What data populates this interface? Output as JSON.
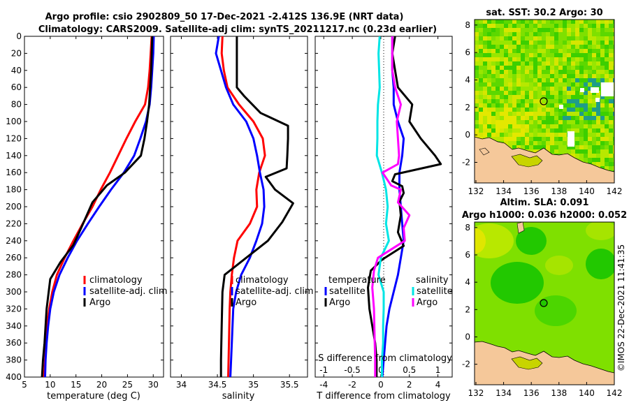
{
  "title": {
    "line1": "Argo profile: csio 2902809_50 17-Dec-2021 -2.412S 136.9E (NRT data)",
    "line2": "Climatology: CARS2009. Satellite-adj clim: synTS_20211217.nc (0.23d earlier)"
  },
  "credit": "©IMOS 22-Dec-2021 11:41:35",
  "colors": {
    "climatology": "#ff0000",
    "satellite": "#0000ff",
    "argo": "#000000",
    "sal_satellite": "#00e5e5",
    "sal_argo": "#ff00ff",
    "land": "#f5c89a"
  },
  "chart_data": [
    {
      "type": "line",
      "name": "temperature-panel",
      "xlabel": "temperature (deg C)",
      "ylabel": "",
      "xlim": [
        5,
        32
      ],
      "ylim": [
        400,
        0
      ],
      "xticks": [
        5,
        10,
        15,
        20,
        25,
        30
      ],
      "yticks": [
        0,
        20,
        40,
        60,
        80,
        100,
        120,
        140,
        160,
        180,
        200,
        220,
        240,
        260,
        280,
        300,
        320,
        340,
        360,
        380,
        400
      ],
      "legend": [
        "climatology",
        "satellite-adj. clim",
        "Argo"
      ],
      "legend_position": "lower-right",
      "series": [
        {
          "name": "climatology",
          "color": "#ff0000",
          "points": [
            [
              29.7,
              0
            ],
            [
              29.5,
              20
            ],
            [
              29.3,
              40
            ],
            [
              29.0,
              60
            ],
            [
              28.4,
              80
            ],
            [
              26.5,
              100
            ],
            [
              24.8,
              120
            ],
            [
              23.2,
              140
            ],
            [
              21.6,
              160
            ],
            [
              19.8,
              180
            ],
            [
              18.2,
              200
            ],
            [
              16.3,
              220
            ],
            [
              14.5,
              240
            ],
            [
              12.8,
              260
            ],
            [
              11.3,
              280
            ],
            [
              10.4,
              300
            ],
            [
              9.8,
              320
            ],
            [
              9.4,
              340
            ],
            [
              9.2,
              360
            ],
            [
              9.0,
              380
            ],
            [
              8.8,
              400
            ]
          ]
        },
        {
          "name": "satellite-adj. clim",
          "color": "#0000ff",
          "points": [
            [
              30.1,
              0
            ],
            [
              30.0,
              20
            ],
            [
              29.8,
              40
            ],
            [
              29.6,
              60
            ],
            [
              29.3,
              80
            ],
            [
              28.6,
              100
            ],
            [
              27.5,
              120
            ],
            [
              26.3,
              140
            ],
            [
              24.3,
              160
            ],
            [
              21.8,
              180
            ],
            [
              19.5,
              200
            ],
            [
              17.3,
              220
            ],
            [
              15.2,
              240
            ],
            [
              13.4,
              260
            ],
            [
              11.8,
              280
            ],
            [
              10.7,
              300
            ],
            [
              10.0,
              320
            ],
            [
              9.6,
              340
            ],
            [
              9.3,
              360
            ],
            [
              9.1,
              380
            ],
            [
              9.0,
              400
            ]
          ]
        },
        {
          "name": "Argo",
          "color": "#000000",
          "points": [
            [
              29.8,
              0
            ],
            [
              29.6,
              40
            ],
            [
              29.4,
              60
            ],
            [
              29.2,
              80
            ],
            [
              28.8,
              100
            ],
            [
              28.3,
              120
            ],
            [
              27.6,
              140
            ],
            [
              24.5,
              160
            ],
            [
              21.0,
              175
            ],
            [
              18.2,
              195
            ],
            [
              16.0,
              225
            ],
            [
              14.5,
              245
            ],
            [
              12.0,
              265
            ],
            [
              10.0,
              285
            ],
            [
              9.3,
              320
            ],
            [
              8.9,
              360
            ],
            [
              8.6,
              380
            ],
            [
              8.4,
              400
            ]
          ]
        }
      ]
    },
    {
      "type": "line",
      "name": "salinity-panel",
      "xlabel": "salinity",
      "xlim": [
        33.85,
        35.75
      ],
      "ylim": [
        400,
        0
      ],
      "xticks": [
        34,
        34.5,
        35,
        35.5
      ],
      "legend": [
        "climatology",
        "satellite-adj. clim",
        "Argo"
      ],
      "legend_position": "lower-right",
      "series": [
        {
          "name": "climatology",
          "color": "#ff0000",
          "points": [
            [
              34.57,
              0
            ],
            [
              34.56,
              20
            ],
            [
              34.59,
              40
            ],
            [
              34.64,
              60
            ],
            [
              34.8,
              80
            ],
            [
              35.0,
              100
            ],
            [
              35.13,
              120
            ],
            [
              35.16,
              140
            ],
            [
              35.08,
              160
            ],
            [
              35.04,
              180
            ],
            [
              35.05,
              200
            ],
            [
              34.95,
              220
            ],
            [
              34.78,
              240
            ],
            [
              34.73,
              260
            ],
            [
              34.7,
              280
            ],
            [
              34.68,
              300
            ],
            [
              34.67,
              320
            ],
            [
              34.66,
              360
            ],
            [
              34.65,
              400
            ]
          ]
        },
        {
          "name": "satellite-adj. clim",
          "color": "#0000ff",
          "points": [
            [
              34.52,
              0
            ],
            [
              34.48,
              20
            ],
            [
              34.55,
              40
            ],
            [
              34.62,
              60
            ],
            [
              34.72,
              80
            ],
            [
              34.9,
              100
            ],
            [
              35.0,
              120
            ],
            [
              35.05,
              140
            ],
            [
              35.09,
              160
            ],
            [
              35.14,
              180
            ],
            [
              35.15,
              200
            ],
            [
              35.12,
              220
            ],
            [
              35.04,
              240
            ],
            [
              34.95,
              260
            ],
            [
              34.83,
              280
            ],
            [
              34.76,
              300
            ],
            [
              34.72,
              320
            ],
            [
              34.7,
              360
            ],
            [
              34.68,
              400
            ]
          ]
        },
        {
          "name": "Argo",
          "color": "#000000",
          "points": [
            [
              34.77,
              0
            ],
            [
              34.77,
              60
            ],
            [
              34.87,
              70
            ],
            [
              35.1,
              90
            ],
            [
              35.48,
              105
            ],
            [
              35.48,
              120
            ],
            [
              35.47,
              140
            ],
            [
              35.46,
              155
            ],
            [
              35.17,
              165
            ],
            [
              35.3,
              180
            ],
            [
              35.55,
              196
            ],
            [
              35.4,
              218
            ],
            [
              35.2,
              240
            ],
            [
              34.9,
              260
            ],
            [
              34.6,
              280
            ],
            [
              34.57,
              300
            ],
            [
              34.56,
              340
            ],
            [
              34.55,
              380
            ],
            [
              34.55,
              400
            ]
          ]
        }
      ]
    },
    {
      "type": "line",
      "name": "difference-panel",
      "xlabel": "T difference from climatology",
      "xlabel_top": "S difference from climatology",
      "xlim": [
        -4.6,
        5.0
      ],
      "ylim": [
        400,
        0
      ],
      "xticks": [
        -4,
        -2,
        0,
        2,
        4
      ],
      "xticks_top": [
        -1,
        -0.5,
        0,
        0.5,
        1
      ],
      "xticklabels_top": [
        "-1",
        "-0.5",
        "0",
        "0.5",
        "1"
      ],
      "legend_temperature": {
        "heading": "temperature",
        "entries": [
          "satellite",
          "Argo"
        ]
      },
      "legend_salinity": {
        "heading": "salinity",
        "entries": [
          "satellite",
          "Argo"
        ]
      },
      "series": [
        {
          "name": "temperature satellite",
          "color": "#0000ff",
          "points": [
            [
              0.8,
              0
            ],
            [
              0.8,
              20
            ],
            [
              0.8,
              40
            ],
            [
              0.9,
              60
            ],
            [
              0.9,
              80
            ],
            [
              1.2,
              100
            ],
            [
              1.6,
              120
            ],
            [
              1.5,
              140
            ],
            [
              1.3,
              160
            ],
            [
              1.3,
              180
            ],
            [
              1.4,
              200
            ],
            [
              1.5,
              220
            ],
            [
              1.6,
              240
            ],
            [
              1.4,
              260
            ],
            [
              1.2,
              280
            ],
            [
              0.9,
              300
            ],
            [
              0.6,
              320
            ],
            [
              0.4,
              340
            ],
            [
              0.3,
              360
            ],
            [
              0.2,
              380
            ],
            [
              0.1,
              400
            ]
          ]
        },
        {
          "name": "temperature Argo",
          "color": "#000000",
          "points": [
            [
              1.0,
              0
            ],
            [
              0.8,
              20
            ],
            [
              1.0,
              40
            ],
            [
              1.2,
              60
            ],
            [
              2.2,
              80
            ],
            [
              2.0,
              100
            ],
            [
              2.8,
              120
            ],
            [
              3.8,
              140
            ],
            [
              4.2,
              150
            ],
            [
              1.0,
              162
            ],
            [
              0.8,
              170
            ],
            [
              1.5,
              176
            ],
            [
              1.6,
              184
            ],
            [
              1.3,
              194
            ],
            [
              1.4,
              210
            ],
            [
              1.2,
              230
            ],
            [
              1.6,
              246
            ],
            [
              0.1,
              262
            ],
            [
              -0.7,
              275
            ],
            [
              -0.9,
              295
            ],
            [
              -0.8,
              320
            ],
            [
              -0.6,
              340
            ],
            [
              -0.4,
              360
            ],
            [
              -0.3,
              380
            ],
            [
              -0.3,
              400
            ]
          ]
        },
        {
          "name": "salinity satellite",
          "color": "#00e5e5",
          "points": [
            [
              -0.02,
              0
            ],
            [
              -0.04,
              20
            ],
            [
              -0.03,
              40
            ],
            [
              -0.02,
              60
            ],
            [
              -0.05,
              80
            ],
            [
              -0.06,
              100
            ],
            [
              -0.06,
              120
            ],
            [
              -0.07,
              140
            ],
            [
              0.02,
              160
            ],
            [
              0.09,
              180
            ],
            [
              0.12,
              200
            ],
            [
              0.09,
              220
            ],
            [
              0.14,
              240
            ],
            [
              0.0,
              260
            ],
            [
              -0.04,
              280
            ],
            [
              0.05,
              300
            ],
            [
              0.05,
              320
            ],
            [
              0.04,
              340
            ],
            [
              0.04,
              360
            ],
            [
              0.02,
              380
            ],
            [
              0.02,
              400
            ]
          ]
        },
        {
          "name": "salinity Argo",
          "color": "#ff00ff",
          "points": [
            [
              0.2,
              0
            ],
            [
              0.2,
              40
            ],
            [
              0.25,
              60
            ],
            [
              0.35,
              80
            ],
            [
              0.28,
              100
            ],
            [
              0.3,
              120
            ],
            [
              0.32,
              140
            ],
            [
              0.3,
              150
            ],
            [
              0.03,
              160
            ],
            [
              0.18,
              175
            ],
            [
              0.35,
              180
            ],
            [
              0.3,
              195
            ],
            [
              0.5,
              210
            ],
            [
              0.4,
              225
            ],
            [
              0.42,
              240
            ],
            [
              -0.05,
              260
            ],
            [
              -0.12,
              275
            ],
            [
              -0.15,
              295
            ],
            [
              -0.12,
              320
            ],
            [
              -0.11,
              350
            ],
            [
              -0.1,
              380
            ],
            [
              -0.1,
              400
            ]
          ]
        }
      ]
    },
    {
      "type": "heatmap",
      "name": "sst-map",
      "title": "sat. SST: 30.2 Argo: 30",
      "xlim": [
        131.9,
        142
      ],
      "ylim": [
        -3.5,
        8.4
      ],
      "xticks": [
        132,
        134,
        136,
        138,
        140,
        142
      ],
      "yticks": [
        -2,
        0,
        2,
        4,
        6,
        8
      ],
      "argo_position": [
        136.9,
        2.35
      ]
    },
    {
      "type": "heatmap",
      "name": "sla-map",
      "title": "Altim. SLA: 0.091",
      "subtitle": "Argo h1000: 0.036 h2000: 0.052",
      "xlim": [
        131.9,
        142
      ],
      "ylim": [
        -3.5,
        8.4
      ],
      "xticks": [
        132,
        134,
        136,
        138,
        140,
        142
      ],
      "yticks": [
        -2,
        0,
        2,
        4,
        6,
        8
      ],
      "argo_position": [
        136.9,
        2.35
      ]
    }
  ]
}
